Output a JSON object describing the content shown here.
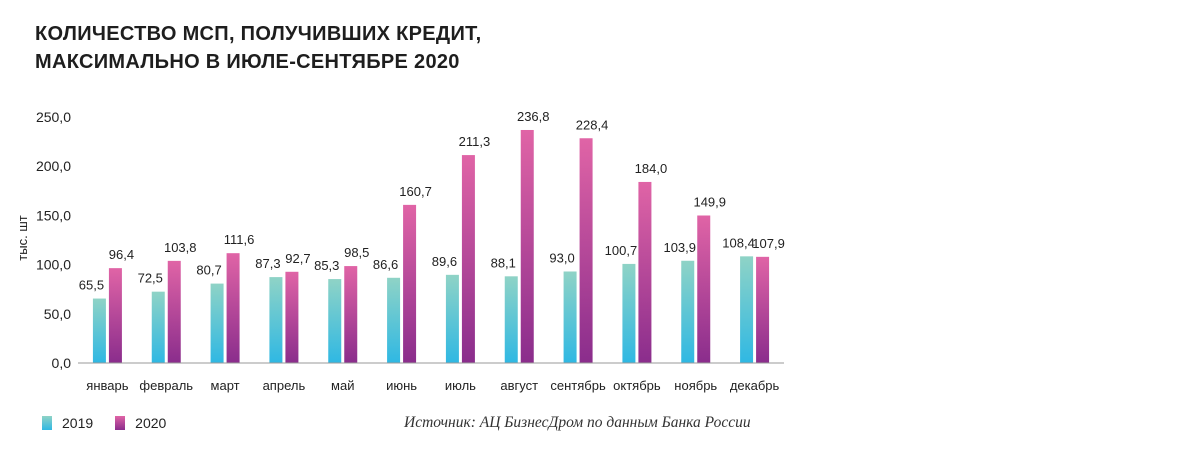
{
  "title": {
    "line1": "КОЛИЧЕСТВО МСП, ПОЛУЧИВШИХ КРЕДИТ,",
    "line2": "МАКСИМАЛЬНО В ИЮЛЕ-СЕНТЯБРЕ 2020"
  },
  "source": "Источник: АЦ БизнесДром по данным Банка России",
  "colors": {
    "s2019_top": "#8fd3c6",
    "s2019_bottom": "#2fb8e3",
    "s2020_top": "#e064a6",
    "s2020_bottom": "#8a2d8c"
  },
  "chart_data": {
    "type": "bar",
    "ylabel": "тыс. шт",
    "ylim": [
      0,
      250
    ],
    "yticks": [
      0,
      50,
      100,
      150,
      200,
      250
    ],
    "ytick_labels": [
      "0,0",
      "50,0",
      "100,0",
      "150,0",
      "200,0",
      "250,0"
    ],
    "categories": [
      "январь",
      "февраль",
      "март",
      "апрель",
      "май",
      "июнь",
      "июль",
      "август",
      "сентябрь",
      "октябрь",
      "ноябрь",
      "декабрь"
    ],
    "series": [
      {
        "name": "2019",
        "values": [
          65.5,
          72.5,
          80.7,
          87.3,
          85.3,
          86.6,
          89.6,
          88.1,
          93.0,
          100.7,
          103.9,
          108.4
        ],
        "labels": [
          "65,5",
          "72,5",
          "80,7",
          "87,3",
          "85,3",
          "86,6",
          "89,6",
          "88,1",
          "93,0",
          "100,7",
          "103,9",
          "108,4"
        ]
      },
      {
        "name": "2020",
        "values": [
          96.4,
          103.8,
          111.6,
          92.7,
          98.5,
          160.7,
          211.3,
          236.8,
          228.4,
          184.0,
          149.9,
          107.9
        ],
        "labels": [
          "96,4",
          "103,8",
          "111,6",
          "92,7",
          "98,5",
          "160,7",
          "211,3",
          "236,8",
          "228,4",
          "184,0",
          "149,9",
          "107,9"
        ]
      }
    ],
    "grid": false,
    "legend": "bottom-left"
  }
}
